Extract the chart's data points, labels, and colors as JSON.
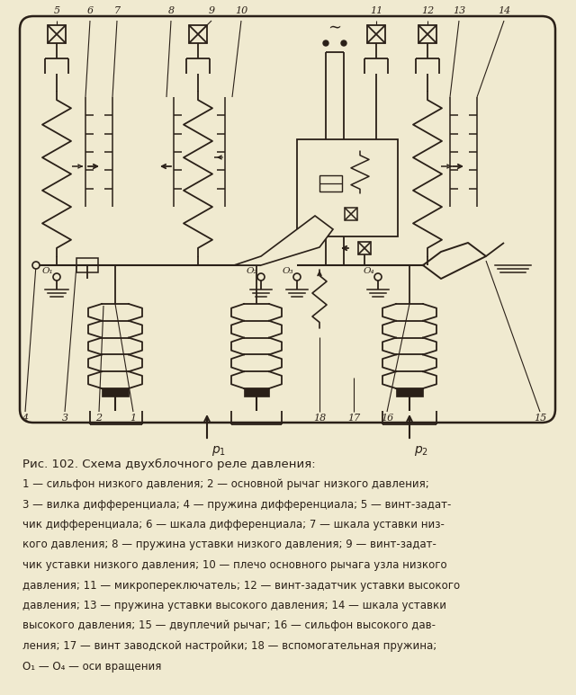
{
  "bg_color": "#f0ead0",
  "line_color": "#2a2018",
  "fig_width": 6.4,
  "fig_height": 7.73,
  "title": "Рис. 102. Схема двухблочного реле давления:",
  "caption": [
    "1 — сильфон низкого давления; 2 — основной рычаг низкого давления;",
    "3 — вилка дифференциала; 4 — пружина дифференциала; 5 — винт-задат-",
    "чик дифференциала; 6 — шкала дифференциала; 7 — шкала уставки низ-",
    "кого давления; 8 — пружина уставки низкого давления; 9 — винт-задат-",
    "чик уставки низкого давления; 10 — плечо основного рычага узла низкого",
    "давления; 11 — микропереключатель; 12 — винт-задатчик уставки высокого",
    "давления; 13 — пружина уставки высокого давления; 14 — шкала уставки",
    "высокого давления; 15 — двуплечий рычаг; 16 — сильфон высокого дав-",
    "ления; 17 — винт заводской настройки; 18 — вспомогательная пружина;",
    "O₁ — O₄ — оси вращения"
  ]
}
